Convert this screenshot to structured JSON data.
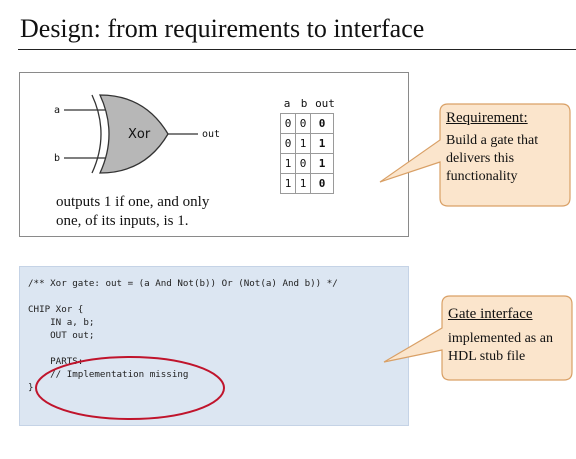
{
  "title": "Design: from requirements to interface",
  "gate": {
    "name": "Xor",
    "input_a": "a",
    "input_b": "b",
    "output": "out",
    "caption_lines": [
      "outputs 1 if one, and only",
      "one, of its inputs, is 1."
    ]
  },
  "truth_table": {
    "headers": [
      "a",
      "b",
      "out"
    ],
    "rows": [
      [
        "0",
        "0",
        "0"
      ],
      [
        "0",
        "1",
        "1"
      ],
      [
        "1",
        "0",
        "1"
      ],
      [
        "1",
        "1",
        "0"
      ]
    ]
  },
  "callout_requirement": {
    "heading": "Requirement:",
    "body": "Build a gate that delivers this functionality"
  },
  "code": {
    "lines": [
      "/** Xor gate: out = (a And Not(b)) Or (Not(a) And b)) */",
      "",
      "CHIP Xor {",
      "    IN a, b;",
      "    OUT out;",
      "",
      "    PARTS:",
      "    // Implementation missing",
      "}"
    ]
  },
  "callout_interface": {
    "heading": "Gate interface",
    "body": "implemented as an HDL stub file"
  },
  "colors": {
    "callout_fill": "#fbe5cc",
    "callout_stroke": "#d9a066",
    "code_bg": "#dce6f2",
    "ellipse": "#c0142c"
  }
}
